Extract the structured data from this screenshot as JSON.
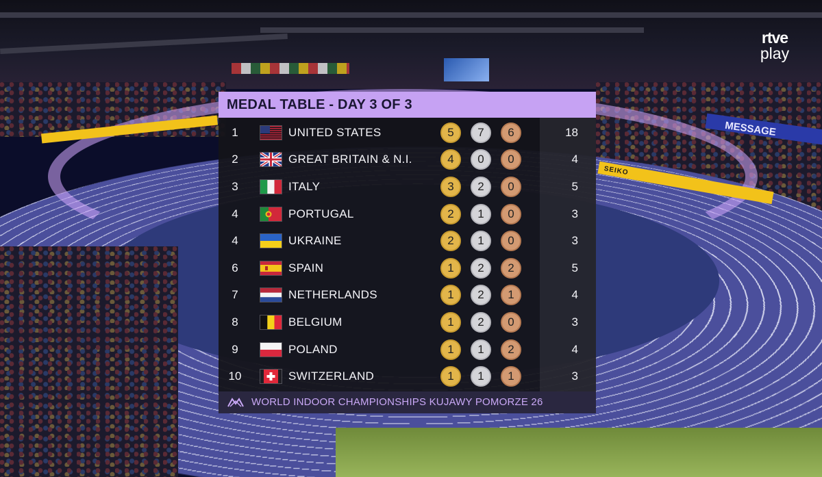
{
  "broadcaster": {
    "logo_line1": "rtve",
    "logo_line2": "play"
  },
  "arena": {
    "banner_text": "MESSAGE",
    "ad_text": "SEIKO"
  },
  "medal_table": {
    "title": "MEDAL TABLE - DAY 3 OF 3",
    "footer": "WORLD INDOOR CHAMPIONSHIPS KUJAWY POMORZE 26",
    "colors": {
      "header": "#c6a2f3",
      "gold": "#e2b54a",
      "silver": "#d4d4d8",
      "bronze": "#d39a72"
    },
    "rows": [
      {
        "rank": "1",
        "flag": "us-flag-icon",
        "country": "UNITED STATES",
        "gold": "5",
        "silver": "7",
        "bronze": "6",
        "total": "18"
      },
      {
        "rank": "2",
        "flag": "gb-flag-icon",
        "country": "GREAT BRITAIN & N.I.",
        "gold": "4",
        "silver": "0",
        "bronze": "0",
        "total": "4"
      },
      {
        "rank": "3",
        "flag": "italy-flag-icon",
        "country": "ITALY",
        "gold": "3",
        "silver": "2",
        "bronze": "0",
        "total": "5"
      },
      {
        "rank": "4",
        "flag": "portugal-flag-icon",
        "country": "PORTUGAL",
        "gold": "2",
        "silver": "1",
        "bronze": "0",
        "total": "3"
      },
      {
        "rank": "4",
        "flag": "ukraine-flag-icon",
        "country": "UKRAINE",
        "gold": "2",
        "silver": "1",
        "bronze": "0",
        "total": "3"
      },
      {
        "rank": "6",
        "flag": "spain-flag-icon",
        "country": "SPAIN",
        "gold": "1",
        "silver": "2",
        "bronze": "2",
        "total": "5"
      },
      {
        "rank": "7",
        "flag": "netherlands-flag-icon",
        "country": "NETHERLANDS",
        "gold": "1",
        "silver": "2",
        "bronze": "1",
        "total": "4"
      },
      {
        "rank": "8",
        "flag": "belgium-flag-icon",
        "country": "BELGIUM",
        "gold": "1",
        "silver": "2",
        "bronze": "0",
        "total": "3"
      },
      {
        "rank": "9",
        "flag": "poland-flag-icon",
        "country": "POLAND",
        "gold": "1",
        "silver": "1",
        "bronze": "2",
        "total": "4"
      },
      {
        "rank": "10",
        "flag": "switzerland-flag-icon",
        "country": "SWITZERLAND",
        "gold": "1",
        "silver": "1",
        "bronze": "1",
        "total": "3"
      }
    ]
  }
}
